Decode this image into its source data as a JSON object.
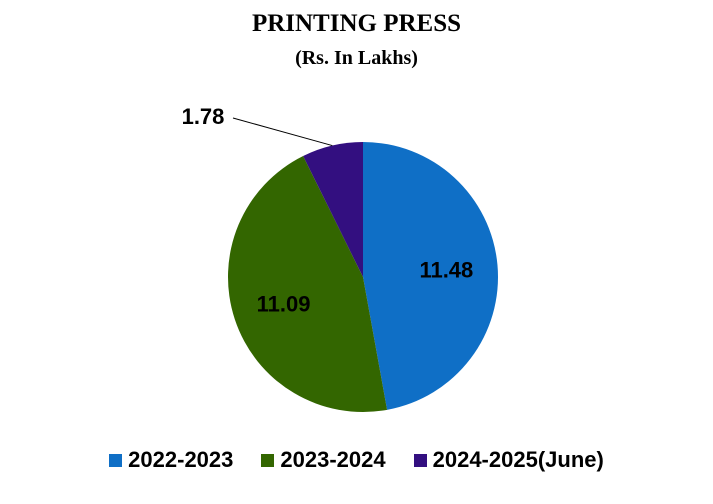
{
  "chart_data": {
    "type": "pie",
    "title": "PRINTING PRESS",
    "subtitle": "(Rs.  In Lakhs)",
    "categories": [
      "2022-2023",
      "2023-2024",
      "2024-2025(June)"
    ],
    "values": [
      11.48,
      11.09,
      1.78
    ],
    "data_labels": [
      "11.48",
      "11.09",
      "1.78"
    ],
    "colors": [
      "#0f6fc6",
      "#336600",
      "#330f80"
    ],
    "legend_position": "bottom"
  }
}
